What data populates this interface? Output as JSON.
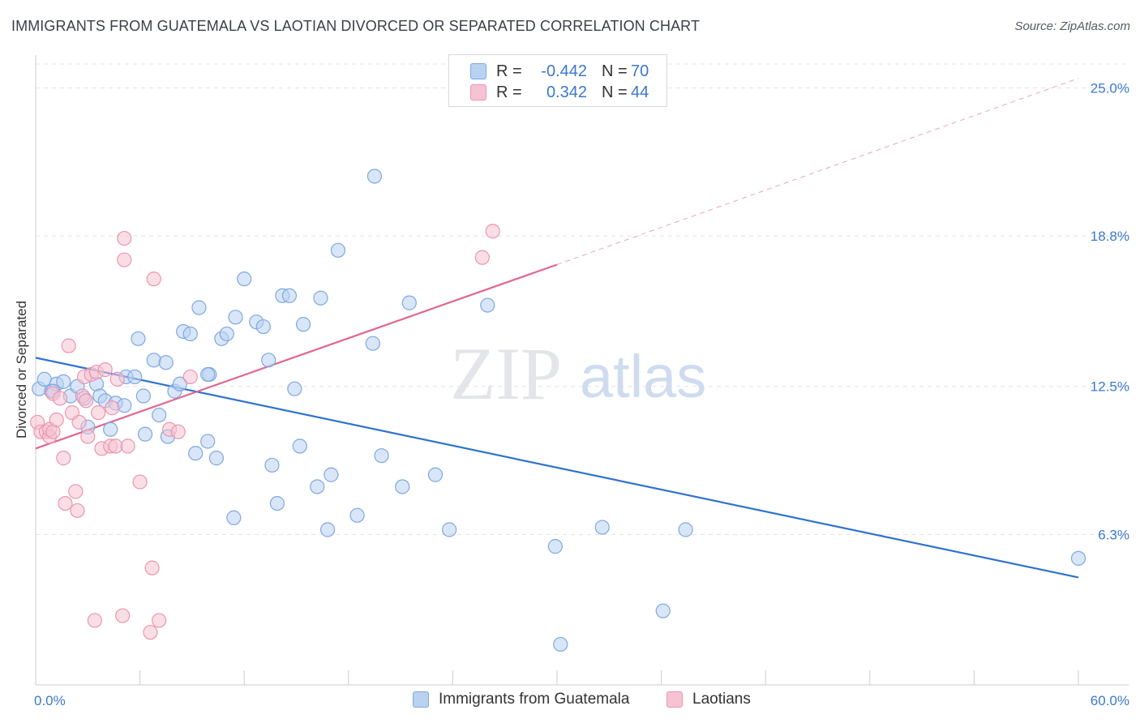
{
  "title": "IMMIGRANTS FROM GUATEMALA VS LAOTIAN DIVORCED OR SEPARATED CORRELATION CHART",
  "source": "Source: ZipAtlas.com",
  "watermark": {
    "zip": "ZIP",
    "atlas": "atlas"
  },
  "legend": {
    "rows": [
      {
        "r_label": "R =",
        "r_value": "-0.442",
        "n_label": "N =",
        "n_value": "70"
      },
      {
        "r_label": "R =",
        "r_value": "0.342",
        "n_label": "N =",
        "n_value": "44"
      }
    ]
  },
  "bottom_legend": {
    "items": [
      "Immigrants from Guatemala",
      "Laotians"
    ]
  },
  "colors": {
    "blue_fill": "#b9d2f2",
    "blue_stroke": "#7ea8e0",
    "blue_line": "#2f72cf",
    "pink_fill": "#f6c3d2",
    "pink_stroke": "#ec95b0",
    "pink_line": "#e0678f",
    "axis_text": "#3b78d0",
    "grid": "#dfe3e8"
  },
  "chart_data": {
    "type": "scatter",
    "title": "IMMIGRANTS FROM GUATEMALA VS LAOTIAN DIVORCED OR SEPARATED CORRELATION CHART",
    "xlabel": "",
    "ylabel": "Divorced or Separated",
    "xlim": [
      0,
      60
    ],
    "ylim": [
      0,
      26
    ],
    "x_tick_labels": [
      "0.0%",
      "60.0%"
    ],
    "y_ticks": [
      6.3,
      12.5,
      18.8,
      25.0
    ],
    "y_tick_labels": [
      "6.3%",
      "12.5%",
      "18.8%",
      "25.0%"
    ],
    "grid": true,
    "legend_position": "top-center",
    "series": [
      {
        "name": "Immigrants from Guatemala",
        "color": "#b9d2f2",
        "points": [
          [
            0.2,
            12.4
          ],
          [
            0.5,
            12.8
          ],
          [
            0.9,
            12.3
          ],
          [
            1.2,
            12.6
          ],
          [
            1.6,
            12.7
          ],
          [
            2.0,
            12.1
          ],
          [
            2.4,
            12.5
          ],
          [
            3.5,
            12.6
          ],
          [
            3.7,
            12.1
          ],
          [
            3.0,
            10.8
          ],
          [
            4.0,
            11.9
          ],
          [
            4.3,
            10.7
          ],
          [
            4.6,
            11.8
          ],
          [
            5.1,
            11.7
          ],
          [
            5.2,
            12.9
          ],
          [
            5.7,
            12.9
          ],
          [
            5.9,
            14.5
          ],
          [
            6.2,
            12.1
          ],
          [
            6.3,
            10.5
          ],
          [
            6.8,
            13.6
          ],
          [
            7.1,
            11.3
          ],
          [
            7.5,
            13.5
          ],
          [
            7.6,
            10.4
          ],
          [
            8.0,
            12.3
          ],
          [
            8.3,
            12.6
          ],
          [
            8.5,
            14.8
          ],
          [
            8.9,
            14.7
          ],
          [
            9.2,
            9.7
          ],
          [
            9.4,
            15.8
          ],
          [
            9.9,
            10.2
          ],
          [
            10.0,
            13.0
          ],
          [
            10.4,
            9.5
          ],
          [
            10.7,
            14.5
          ],
          [
            11.0,
            14.7
          ],
          [
            11.4,
            7.0
          ],
          [
            11.5,
            15.4
          ],
          [
            12.0,
            17.0
          ],
          [
            12.7,
            15.2
          ],
          [
            13.1,
            15.0
          ],
          [
            13.4,
            13.6
          ],
          [
            13.6,
            9.2
          ],
          [
            13.9,
            7.6
          ],
          [
            14.2,
            16.3
          ],
          [
            14.6,
            16.3
          ],
          [
            14.9,
            12.4
          ],
          [
            15.2,
            10.0
          ],
          [
            15.4,
            15.1
          ],
          [
            16.2,
            8.3
          ],
          [
            16.4,
            16.2
          ],
          [
            16.8,
            6.5
          ],
          [
            17.0,
            8.8
          ],
          [
            17.4,
            18.2
          ],
          [
            18.5,
            7.1
          ],
          [
            19.4,
            14.3
          ],
          [
            19.5,
            21.3
          ],
          [
            19.9,
            9.6
          ],
          [
            21.1,
            8.3
          ],
          [
            21.5,
            16.0
          ],
          [
            23.0,
            8.8
          ],
          [
            23.8,
            6.5
          ],
          [
            26.0,
            15.9
          ],
          [
            29.9,
            5.8
          ],
          [
            30.2,
            1.7
          ],
          [
            32.6,
            6.6
          ],
          [
            36.1,
            3.1
          ],
          [
            37.4,
            6.5
          ],
          [
            60.0,
            5.3
          ],
          [
            1.0,
            12.3
          ],
          [
            2.8,
            12.0
          ],
          [
            9.9,
            13.0
          ]
        ]
      },
      {
        "name": "Laotians",
        "color": "#f6c3d2",
        "points": [
          [
            0.1,
            11.0
          ],
          [
            0.3,
            10.6
          ],
          [
            0.6,
            10.6
          ],
          [
            0.8,
            10.4
          ],
          [
            0.8,
            10.7
          ],
          [
            1.0,
            10.6
          ],
          [
            1.0,
            12.2
          ],
          [
            1.2,
            11.1
          ],
          [
            1.4,
            12.0
          ],
          [
            1.6,
            9.5
          ],
          [
            1.7,
            7.6
          ],
          [
            1.9,
            14.2
          ],
          [
            2.1,
            11.4
          ],
          [
            2.3,
            8.1
          ],
          [
            2.4,
            7.3
          ],
          [
            2.5,
            11.0
          ],
          [
            2.7,
            12.1
          ],
          [
            2.8,
            12.9
          ],
          [
            2.9,
            11.9
          ],
          [
            3.0,
            10.4
          ],
          [
            3.2,
            13.0
          ],
          [
            3.4,
            2.7
          ],
          [
            3.5,
            13.1
          ],
          [
            3.6,
            11.4
          ],
          [
            3.8,
            9.9
          ],
          [
            4.0,
            13.2
          ],
          [
            4.3,
            10.0
          ],
          [
            4.4,
            11.6
          ],
          [
            4.6,
            10.0
          ],
          [
            4.7,
            12.8
          ],
          [
            5.0,
            2.9
          ],
          [
            5.1,
            18.7
          ],
          [
            5.1,
            17.8
          ],
          [
            5.3,
            10.0
          ],
          [
            6.0,
            8.5
          ],
          [
            6.6,
            2.2
          ],
          [
            6.7,
            4.9
          ],
          [
            6.8,
            17.0
          ],
          [
            7.1,
            2.7
          ],
          [
            7.7,
            10.7
          ],
          [
            8.2,
            10.6
          ],
          [
            8.9,
            12.9
          ],
          [
            26.3,
            19.0
          ],
          [
            25.7,
            17.9
          ]
        ]
      }
    ],
    "trend_lines": [
      {
        "series": "Immigrants from Guatemala",
        "x": [
          0,
          60
        ],
        "y": [
          13.7,
          4.5
        ]
      },
      {
        "series": "Laotians",
        "x": [
          0,
          30
        ],
        "y": [
          9.9,
          17.6
        ],
        "dashed_extension_to": [
          60,
          25.4
        ]
      }
    ]
  }
}
